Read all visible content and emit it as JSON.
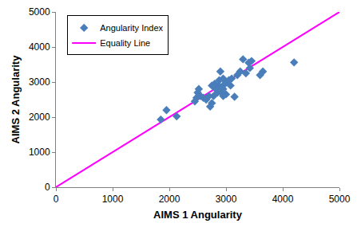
{
  "chart_data": {
    "type": "scatter",
    "x_label": "AIMS 1 Angularity",
    "y_label": "AIMS 2 Angularity",
    "xlim": [
      0,
      5000
    ],
    "ylim": [
      0,
      5000
    ],
    "xticks": [
      0,
      1000,
      2000,
      3000,
      4000,
      5000
    ],
    "yticks": [
      0,
      1000,
      2000,
      3000,
      4000,
      5000
    ],
    "grid": false,
    "legend": "upper left",
    "series": [
      {
        "name": "Angularity Index",
        "type": "scatter",
        "color": "#4a7ebb",
        "marker": "diamond",
        "x": [
          1850,
          1950,
          2130,
          2450,
          2480,
          2500,
          2520,
          2550,
          2600,
          2650,
          2700,
          2720,
          2750,
          2750,
          2780,
          2800,
          2820,
          2850,
          2870,
          2880,
          2900,
          2900,
          2920,
          2950,
          2950,
          2980,
          3000,
          3000,
          3050,
          3080,
          3150,
          3200,
          3250,
          3300,
          3350,
          3400,
          3420,
          3450,
          3600,
          3650,
          4200,
          2950,
          3100
        ],
        "y": [
          1930,
          2200,
          2020,
          2450,
          2550,
          2700,
          2800,
          2600,
          2550,
          2500,
          2600,
          2300,
          2400,
          2900,
          2600,
          2950,
          2800,
          2700,
          2900,
          3050,
          3300,
          2850,
          2700,
          3100,
          2800,
          2950,
          3000,
          2650,
          3050,
          2900,
          2580,
          3200,
          3300,
          3650,
          3250,
          3550,
          3400,
          3600,
          3200,
          3300,
          3560,
          2600,
          3100
        ]
      },
      {
        "name": "Equality Line",
        "type": "line",
        "color": "#ff00ff",
        "line_style": "solid",
        "x": [
          0,
          5000
        ],
        "y": [
          0,
          5000
        ]
      }
    ]
  }
}
